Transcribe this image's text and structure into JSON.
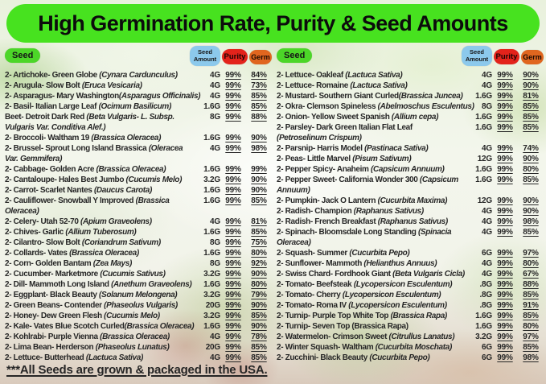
{
  "banner": {
    "title": "High Germination Rate, Purity & Seed Amounts"
  },
  "table": {
    "headers": {
      "seed": "Seed",
      "amount": "Seed Amount",
      "purity": "Purity",
      "germ": "Germ"
    }
  },
  "colors": {
    "banner_green": "#47e21f",
    "seed_green": "#4cd628",
    "amount_blue": "#8cc9ec",
    "purity_red": "#e3231b",
    "germ_orange": "#e0661f",
    "text_dark": "#262626"
  },
  "columns": [
    {
      "entries": [
        {
          "name": "2- Artichoke- Green Globe ",
          "latin": "(Cynara Cardunculus)",
          "amount": "4G",
          "purity": "99%",
          "germ": "84%"
        },
        {
          "name": "2- Arugula- Slow Bolt ",
          "latin": "(Eruca Vesicaria)",
          "amount": "4G",
          "purity": "99%",
          "germ": "73%"
        },
        {
          "name": "2- Asparagus- Mary Washington",
          "latin": "(Asparagus Officinalis)",
          "amount": "4G",
          "purity": "99%",
          "germ": "85%"
        },
        {
          "name": "2- Basil- Italian Large Leaf ",
          "latin": "(Ocimum Basilicum)",
          "amount": "1.6G",
          "purity": "99%",
          "germ": "85%"
        },
        {
          "name": "Beet- Detroit Dark Red ",
          "latin": "(Beta Vulgaris- L. Subsp. Vulgaris Var. Conditiva Alef.)",
          "amount": "8G",
          "purity": "99%",
          "germ": "88%",
          "lines": 2
        },
        {
          "name": "2- Broccoli- Waltham 19 ",
          "latin": "(Brassica Oleracea)",
          "amount": "1.6G",
          "purity": "99%",
          "germ": "90%"
        },
        {
          "name": "2- Brussel- Sprout Long Island Brassica ",
          "latin": "(Oleracea Var. Gemmifera)",
          "amount": "4G",
          "purity": "99%",
          "germ": "98%",
          "lines": 2
        },
        {
          "name": "2- Cabbage- Golden Acre ",
          "latin": "(Brassica Oleracea)",
          "amount": "1.6G",
          "purity": "99%",
          "germ": "99%"
        },
        {
          "name": "2- Cantaloupe- Hales Best Jumbo ",
          "latin": "(Cucumis Melo)",
          "amount": "3.2G",
          "purity": "99%",
          "germ": "90%"
        },
        {
          "name": "2- Carrot- Scarlet Nantes ",
          "latin": "(Daucus Carota)",
          "amount": "1.6G",
          "purity": "99%",
          "germ": "90%"
        },
        {
          "name": "2- Cauliflower- Snowball Y Improved ",
          "latin": "(Brassica Oleracea)",
          "amount": "1.6G",
          "purity": "99%",
          "germ": "85%",
          "lines": 2
        },
        {
          "name": "2- Celery- Utah 52-70 ",
          "latin": "(Apium Graveolens)",
          "amount": "4G",
          "purity": "99%",
          "germ": "81%"
        },
        {
          "name": "2- Chives- Garlic ",
          "latin": "(Allium Tuberosum)",
          "amount": "1.6G",
          "purity": "99%",
          "germ": "85%"
        },
        {
          "name": "2- Cilantro- Slow Bolt ",
          "latin": "(Coriandrum Sativum)",
          "amount": "8G",
          "purity": "99%",
          "germ": "75%"
        },
        {
          "name": "2- Collards- Vates ",
          "latin": "(Brassica Oleracea)",
          "amount": "1.6G",
          "purity": "99%",
          "germ": "80%"
        },
        {
          "name": "2- Corn- Golden Bantam ",
          "latin": "(Zea Mays)",
          "amount": "8G",
          "purity": "99%",
          "germ": "92%"
        },
        {
          "name": "2- Cucumber- Marketmore ",
          "latin": "(Cucumis Sativus)",
          "amount": "3.2G",
          "purity": "99%",
          "germ": "90%"
        },
        {
          "name": "2- Dill- Mammoth Long Island ",
          "latin": "(Anethum Graveolens)",
          "amount": "1.6G",
          "purity": "99%",
          "germ": "80%"
        },
        {
          "name": "2- Eggplant- Black Beauty ",
          "latin": "(Solanum Melongena)",
          "amount": "3.2G",
          "purity": "99%",
          "germ": "79%"
        },
        {
          "name": "2- Green Beans- Contender ",
          "latin": "(Phaseolus Vulgaris)",
          "amount": "20G",
          "purity": "99%",
          "germ": "90%"
        },
        {
          "name": "2- Honey- Dew Green Flesh ",
          "latin": "(Cucumis Melo)",
          "amount": "3.2G",
          "purity": "99%",
          "germ": "85%"
        },
        {
          "name": "2- Kale- Vates Blue Scotch Curled",
          "latin": "(Brassica Oleracea)",
          "amount": "1.6G",
          "purity": "99%",
          "germ": "90%"
        },
        {
          "name": "2- Kohlrabi- Purple Vienna ",
          "latin": "(Brassica Oleracea)",
          "amount": "4G",
          "purity": "99%",
          "germ": "78%"
        },
        {
          "name": "2- Lima Bean- Herderson ",
          "latin": "(Phaseolus Lunatus)",
          "amount": "20G",
          "purity": "99%",
          "germ": "85%"
        },
        {
          "name": "2- Lettuce- Butterhead ",
          "latin": "(Lactuca Sativa)",
          "amount": "4G",
          "purity": "99%",
          "germ": "85%"
        }
      ]
    },
    {
      "entries": [
        {
          "name": "2- Lettuce- Oakleaf ",
          "latin": "(Lactuca Sativa)",
          "amount": "4G",
          "purity": "99%",
          "germ": "90%"
        },
        {
          "name": "2- Lettuce- Romaine ",
          "latin": "(Lactuca Sativa)",
          "amount": "4G",
          "purity": "99%",
          "germ": "90%"
        },
        {
          "name": "2- Mustard- Southern Giant Curled",
          "latin": "(Brassica Juncea)",
          "amount": "1.6G",
          "purity": "99%",
          "germ": "81%"
        },
        {
          "name": "2- Okra- Clemson Spineless ",
          "latin": "(Abelmoschus Esculentus)",
          "amount": "8G",
          "purity": "99%",
          "germ": "85%"
        },
        {
          "name": "2- Onion- Yellow Sweet Spanish ",
          "latin": "(Allium cepa)",
          "amount": "1.6G",
          "purity": "99%",
          "germ": "85%"
        },
        {
          "name": "2- Parsley- Dark Green Italian Flat Leaf ",
          "latin": "(Petroselinum Crispum)",
          "amount": "1.6G",
          "purity": "99%",
          "germ": "85%",
          "lines": 2
        },
        {
          "name": "2- Parsnip- Harris Model ",
          "latin": "(Pastinaca Sativa)",
          "amount": "4G",
          "purity": "99%",
          "germ": "74%"
        },
        {
          "name": "2- Peas- Little Marvel ",
          "latin": "(Pisum Sativum)",
          "amount": "12G",
          "purity": "99%",
          "germ": "90%"
        },
        {
          "name": "2- Pepper Spicy- Anaheim ",
          "latin": "(Capsicum Annuum)",
          "amount": "1.6G",
          "purity": "99%",
          "germ": "80%"
        },
        {
          "name": "2- Pepper Sweet- California Wonder 300 ",
          "latin": "(Capsicum Annuum)",
          "amount": "1.6G",
          "purity": "99%",
          "germ": "85%",
          "lines": 2
        },
        {
          "name": "2- Pumpkin- Jack O Lantern ",
          "latin": "(Cucurbita Maxima)",
          "amount": "12G",
          "purity": "99%",
          "germ": "90%"
        },
        {
          "name": "2- Radish- Champion ",
          "latin": "(Raphanus Sativus)",
          "amount": "4G",
          "purity": "99%",
          "germ": "90%"
        },
        {
          "name": "2- Radish- French Breakfast ",
          "latin": "(Raphanus Sativus)",
          "amount": "4G",
          "purity": "99%",
          "germ": "98%"
        },
        {
          "name": "2- Spinach- Bloomsdale Long Standing ",
          "latin": "(Spinacia Oleracea)",
          "amount": "4G",
          "purity": "99%",
          "germ": "85%",
          "lines": 2
        },
        {
          "name": "2- Squash- Summer ",
          "latin": "(Cucurbita Pepo)",
          "amount": "6G",
          "purity": "99%",
          "germ": "97%"
        },
        {
          "name": "2- Sunflower- Mammoth ",
          "latin": "(Helianthus Annuus)",
          "amount": "4G",
          "purity": "99%",
          "germ": "80%"
        },
        {
          "name": "2- Swiss Chard- Fordhook Giant ",
          "latin": "(Beta Vulgaris Cicla)",
          "amount": "4G",
          "purity": "99%",
          "germ": "67%"
        },
        {
          "name": "2- Tomato- Beefsteak ",
          "latin": "(Lycopersicon Esculentum)",
          "amount": ".8G",
          "purity": "99%",
          "germ": "88%"
        },
        {
          "name": "2- Tomato- Cherry ",
          "latin": "(Lycopersicon Esculentum)",
          "amount": ".8G",
          "purity": "99%",
          "germ": "85%"
        },
        {
          "name": "2- Tomato- Roma IV ",
          "latin": "(Lycopersicon Esculentum)",
          "amount": ".8G",
          "purity": "99%",
          "germ": "91%"
        },
        {
          "name": "2- Turnip- Purple Top White Top ",
          "latin": "(Brassica Rapa)",
          "amount": "1.6G",
          "purity": "99%",
          "germ": "85%"
        },
        {
          "name": "2- Turnip- Seven Top ",
          "latin": "(Brassica Rapa)",
          "amount": "1.6G",
          "purity": "99%",
          "germ": "80%",
          "latin_italic": false
        },
        {
          "name": "2- Watermelon- Crimson Sweet ",
          "latin": "(Citrullus Lanatus)",
          "amount": "3.2G",
          "purity": "99%",
          "germ": "97%"
        },
        {
          "name": "2- Winter Squash- Waltham ",
          "latin": "(Cucurbita Moschata)",
          "amount": "6G",
          "purity": "99%",
          "germ": "85%"
        },
        {
          "name": "2- Zucchini- Black Beauty ",
          "latin": "(Cucurbita Pepo)",
          "amount": "6G",
          "purity": "99%",
          "germ": "98%"
        }
      ]
    }
  ],
  "footer": {
    "note": "***All Seeds are grown & packaged in the USA."
  }
}
